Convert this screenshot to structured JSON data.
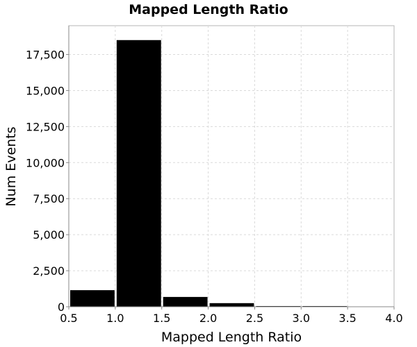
{
  "chart_data": {
    "type": "bar",
    "title": "Mapped Length Ratio",
    "xlabel": "Mapped Length Ratio",
    "ylabel": "Num Events",
    "xlim": [
      0.5,
      4.0
    ],
    "ylim": [
      0,
      19500
    ],
    "x_ticks": [
      "0.5",
      "1.0",
      "1.5",
      "2.0",
      "2.5",
      "3.0",
      "3.5",
      "4.0"
    ],
    "y_ticks": [
      "0",
      "2,500",
      "5,000",
      "7,500",
      "10,000",
      "12,500",
      "15,000",
      "17,500"
    ],
    "bin_width": 0.5,
    "bins": [
      {
        "start": 0.5,
        "end": 1.0,
        "value": 1150
      },
      {
        "start": 1.0,
        "end": 1.5,
        "value": 18500
      },
      {
        "start": 1.5,
        "end": 2.0,
        "value": 680
      },
      {
        "start": 2.0,
        "end": 2.5,
        "value": 250
      },
      {
        "start": 2.5,
        "end": 3.0,
        "value": 30
      },
      {
        "start": 3.0,
        "end": 3.5,
        "value": 5
      },
      {
        "start": 3.5,
        "end": 4.0,
        "value": 0
      }
    ],
    "bar_color": "#000000",
    "grid": true,
    "legend": "none"
  }
}
